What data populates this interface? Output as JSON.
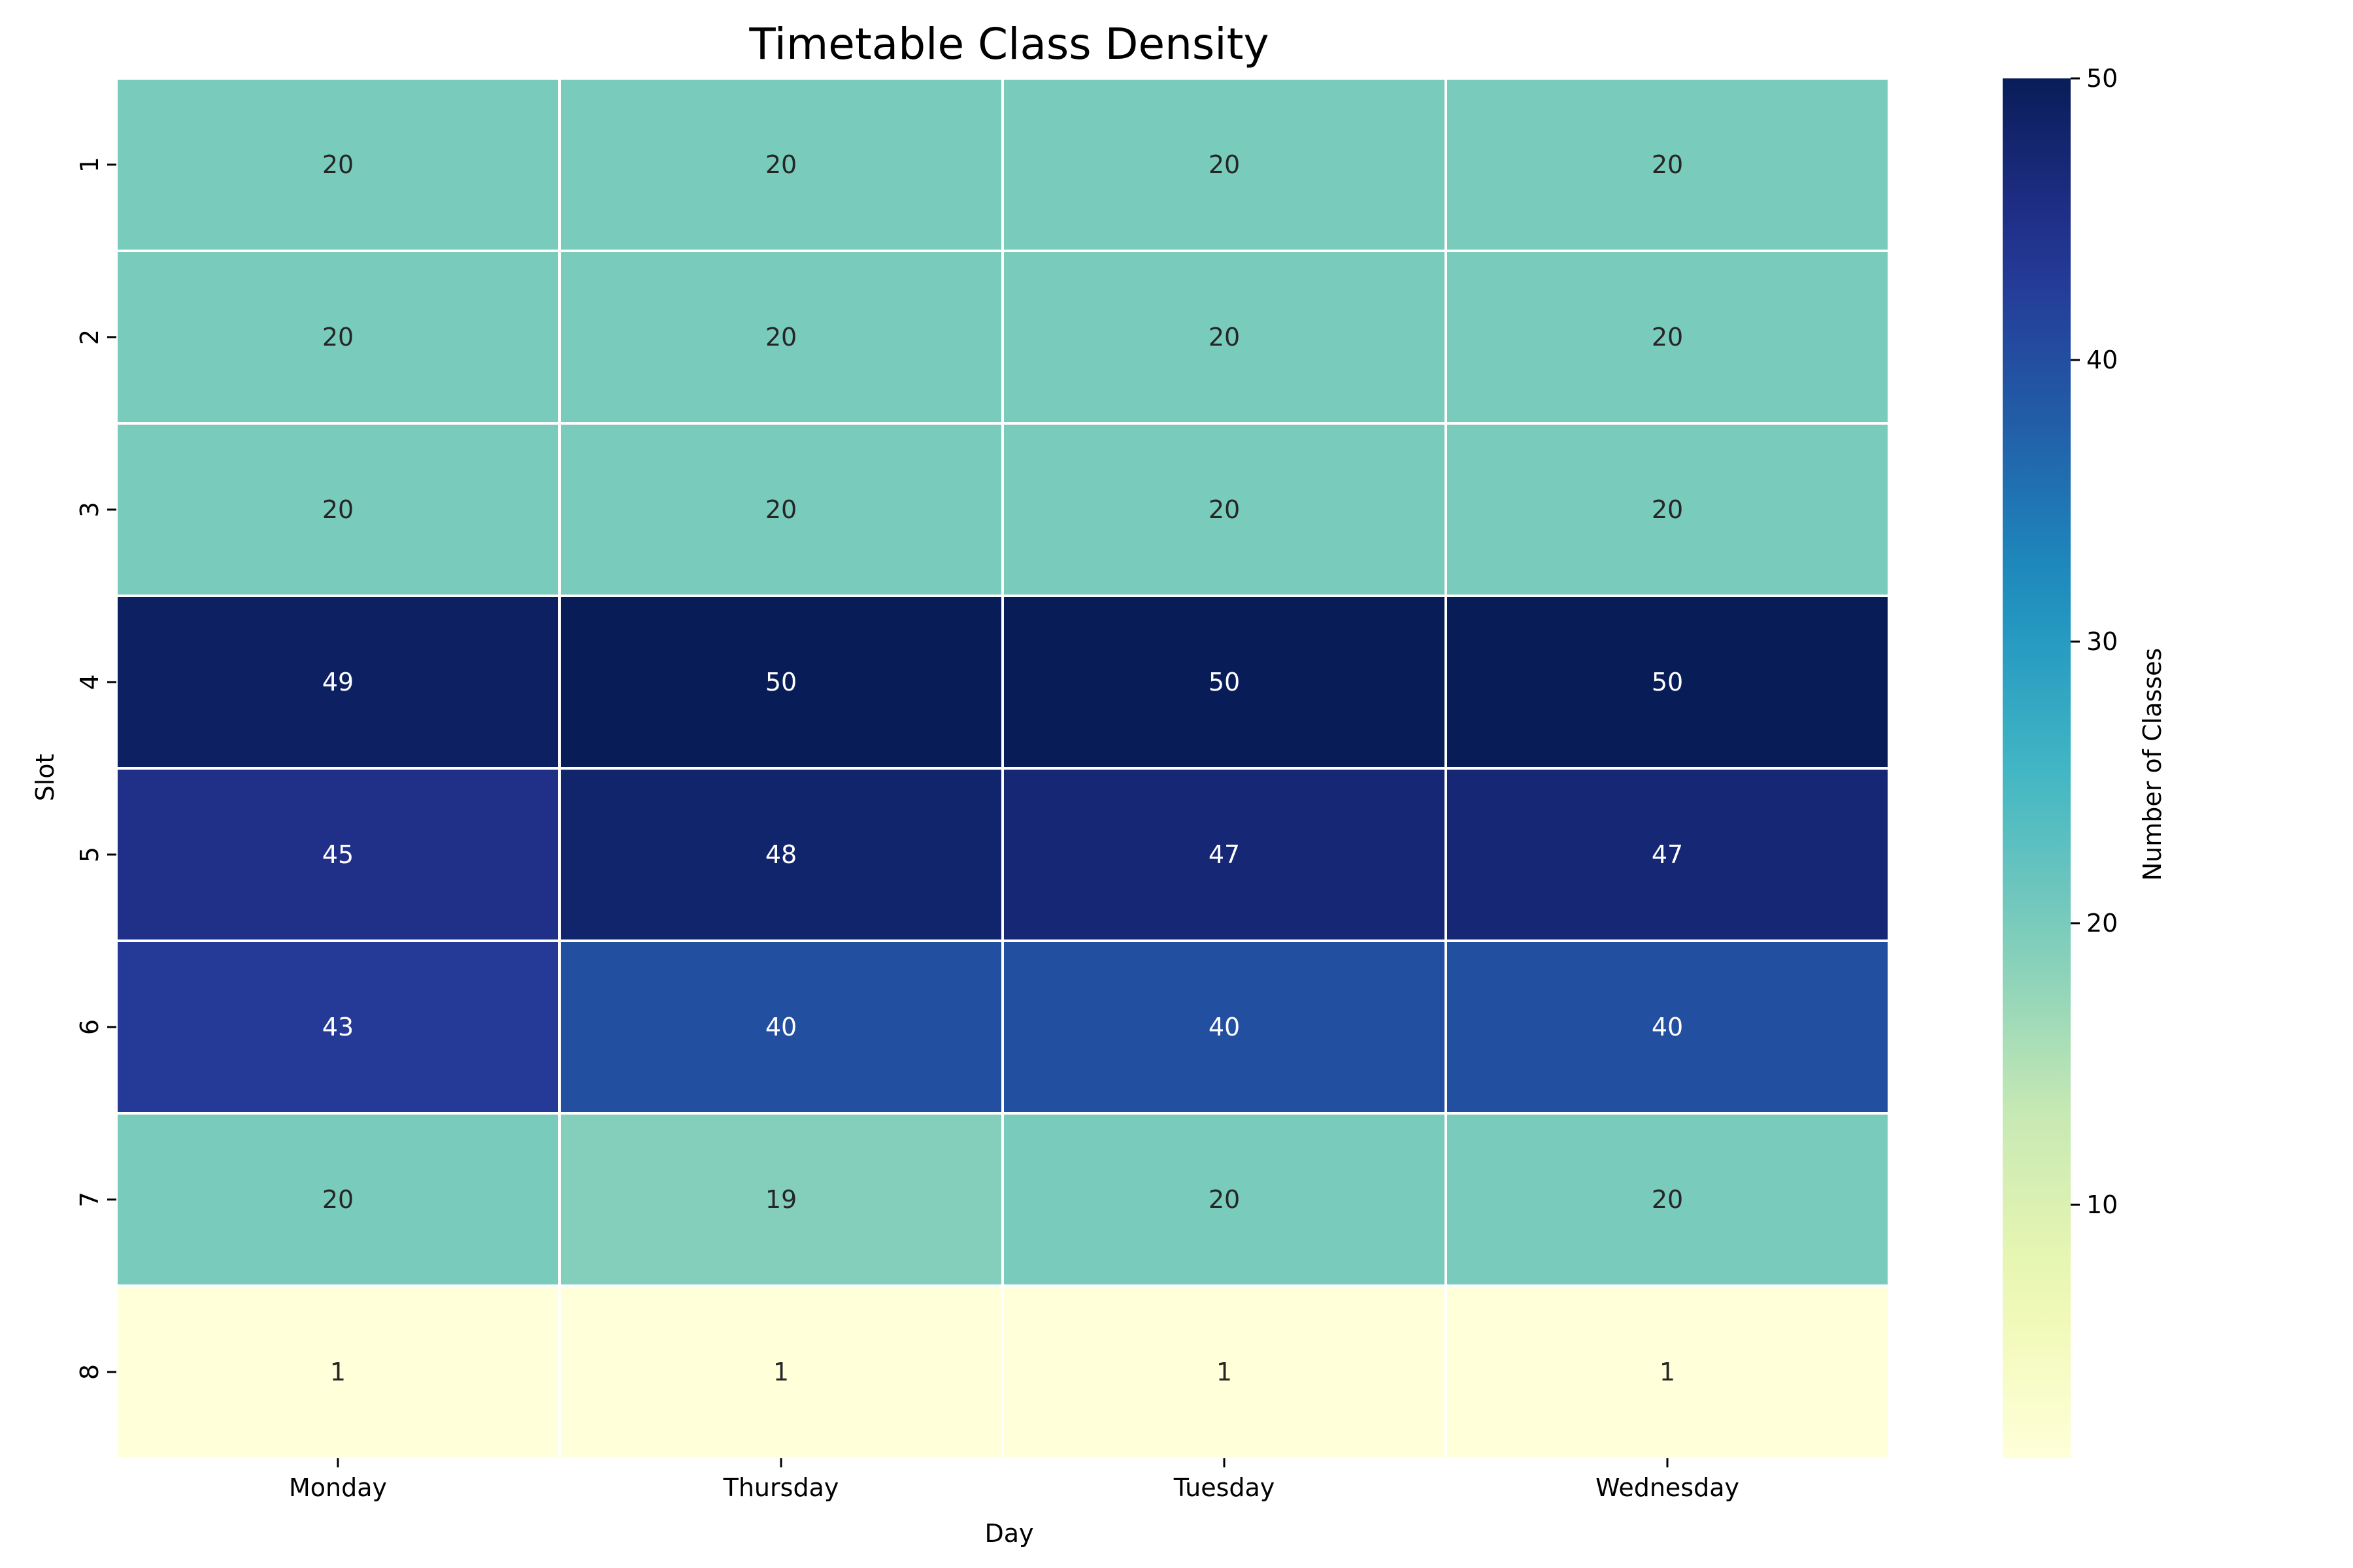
{
  "chart_data": {
    "type": "heatmap",
    "title": "Timetable Class Density",
    "xlabel": "Day",
    "ylabel": "Slot",
    "x_categories": [
      "Monday",
      "Thursday",
      "Tuesday",
      "Wednesday"
    ],
    "y_categories": [
      "1",
      "2",
      "3",
      "4",
      "5",
      "6",
      "7",
      "8"
    ],
    "values": [
      [
        20,
        20,
        20,
        20
      ],
      [
        20,
        20,
        20,
        20
      ],
      [
        20,
        20,
        20,
        20
      ],
      [
        49,
        50,
        50,
        50
      ],
      [
        45,
        48,
        47,
        47
      ],
      [
        43,
        40,
        40,
        40
      ],
      [
        20,
        19,
        20,
        20
      ],
      [
        1,
        1,
        1,
        1
      ]
    ],
    "colorbar": {
      "label": "Number of Classes",
      "range": [
        1,
        50
      ],
      "ticks": [
        10,
        20,
        30,
        40,
        50
      ],
      "colormap": "YlGnBu"
    },
    "annotated": true,
    "grid": false
  }
}
